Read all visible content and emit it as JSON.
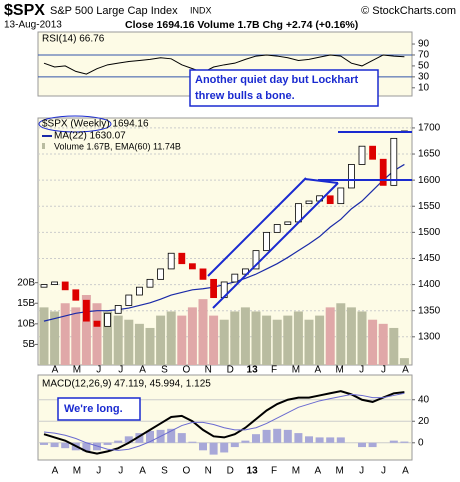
{
  "header": {
    "symbol": "$SPX",
    "name": "S&P 500 Large Cap Index",
    "exchange": "INDX",
    "credit": "© StockCharts.com",
    "date": "13-Aug-2013",
    "quote": "Close 1694.16  Volume 1.7B  Chg +2.74 (+0.16%)"
  },
  "xlabels": [
    "A",
    "M",
    "J",
    "J",
    "A",
    "S",
    "O",
    "N",
    "D",
    "13",
    "F",
    "M",
    "A",
    "M",
    "J",
    "J",
    "A"
  ],
  "chart_data": [
    {
      "type": "line",
      "legend": "RSI(14) 66.76",
      "color": "#000000",
      "level_color": "#3355aa",
      "annotation": [
        "Another quiet day but Lockhart",
        "threw bulls a bone."
      ],
      "ylim": [
        -5,
        112
      ],
      "yticks": [
        10,
        30,
        50,
        70,
        90
      ],
      "levels": [
        70,
        30
      ],
      "values": [
        55,
        48,
        50,
        40,
        35,
        45,
        52,
        55,
        58,
        60,
        62,
        65,
        63,
        52,
        45,
        38,
        48,
        52,
        55,
        62,
        68,
        70,
        68,
        65,
        60,
        62,
        66,
        70,
        68,
        55,
        50,
        60,
        70,
        68,
        66.76
      ]
    },
    {
      "type": "candlestick",
      "legend": [
        "$SPX (Weekly) 1694.16",
        "MA(22) 1630.07",
        "Volume 1.67B, EMA(60) 11.74B"
      ],
      "ylim": [
        1246,
        1719
      ],
      "yticks": [
        1300,
        1350,
        1400,
        1450,
        1500,
        1550,
        1600,
        1650,
        1700
      ],
      "grid": true,
      "open": [
        1395,
        1400,
        1405,
        1390,
        1370,
        1330,
        1320,
        1345,
        1360,
        1380,
        1395,
        1410,
        1430,
        1460,
        1440,
        1430,
        1410,
        1375,
        1405,
        1420,
        1430,
        1465,
        1500,
        1515,
        1520,
        1555,
        1560,
        1570,
        1555,
        1585,
        1630,
        1665,
        1640,
        1590,
        1691.42
      ],
      "close": [
        1400,
        1405,
        1390,
        1370,
        1330,
        1320,
        1345,
        1360,
        1380,
        1395,
        1410,
        1430,
        1460,
        1440,
        1430,
        1410,
        1375,
        1405,
        1420,
        1430,
        1465,
        1500,
        1515,
        1520,
        1555,
        1560,
        1570,
        1555,
        1585,
        1630,
        1665,
        1640,
        1590,
        1680,
        1694.16
      ],
      "ma": {
        "color": "#1a2aa8",
        "values": [
          1330,
          1335,
          1340,
          1345,
          1348,
          1350,
          1350,
          1352,
          1355,
          1360,
          1365,
          1372,
          1380,
          1385,
          1390,
          1392,
          1395,
          1400,
          1405,
          1412,
          1420,
          1430,
          1440,
          1452,
          1465,
          1478,
          1492,
          1510,
          1525,
          1545,
          1560,
          1580,
          1600,
          1618,
          1630.07
        ]
      },
      "volume": {
        "axis": "y2",
        "up_color": "#b9bca0",
        "down_color": "#e0a8a8",
        "values": [
          14,
          13,
          15,
          14,
          17,
          15,
          13,
          12,
          11,
          10,
          9,
          12,
          13,
          12,
          14,
          16,
          12,
          11,
          13,
          14,
          13,
          12,
          11,
          12,
          13,
          11,
          12,
          14,
          15,
          14,
          13,
          11,
          10,
          9,
          1.67
        ]
      },
      "y2lim": [
        0,
        60
      ],
      "y2ticks": [
        {
          "value": 5,
          "label": "5B"
        },
        {
          "value": 10,
          "label": "10B"
        },
        {
          "value": 15,
          "label": "15B"
        },
        {
          "value": 20,
          "label": "20B"
        }
      ]
    },
    {
      "type": "macd",
      "legend": "MACD(12,26,9) 47.119, 45.994, 1.125",
      "annotation": "We're long.",
      "ylim": [
        -16,
        63
      ],
      "yticks": [
        0,
        20,
        40
      ],
      "series": [
        {
          "name": "MACD",
          "color": "#000000",
          "values": [
            8,
            5,
            2,
            -3,
            -8,
            -10,
            -8,
            -5,
            0,
            6,
            12,
            18,
            24,
            25,
            20,
            12,
            6,
            5,
            8,
            14,
            22,
            30,
            36,
            40,
            42,
            42,
            44,
            46,
            48,
            45,
            40,
            38,
            42,
            46,
            47.119
          ]
        },
        {
          "name": "Signal",
          "color": "#6a6ad0",
          "values": [
            10,
            9,
            7,
            4,
            0,
            -3,
            -6,
            -7,
            -6,
            -3,
            1,
            6,
            11,
            16,
            19,
            19,
            17,
            14,
            12,
            12,
            14,
            18,
            23,
            28,
            33,
            36,
            39,
            41,
            43,
            45,
            44,
            42,
            42,
            44,
            45.994
          ]
        }
      ],
      "histogram": {
        "color": "#a8a8d8",
        "values": [
          -2,
          -4,
          -5,
          -7,
          -8,
          -7,
          -2,
          2,
          6,
          9,
          11,
          12,
          13,
          9,
          1,
          -7,
          -11,
          -9,
          -4,
          2,
          8,
          12,
          13,
          12,
          9,
          6,
          5,
          5,
          5,
          0,
          -4,
          -4,
          0,
          2,
          1.125
        ]
      }
    }
  ]
}
